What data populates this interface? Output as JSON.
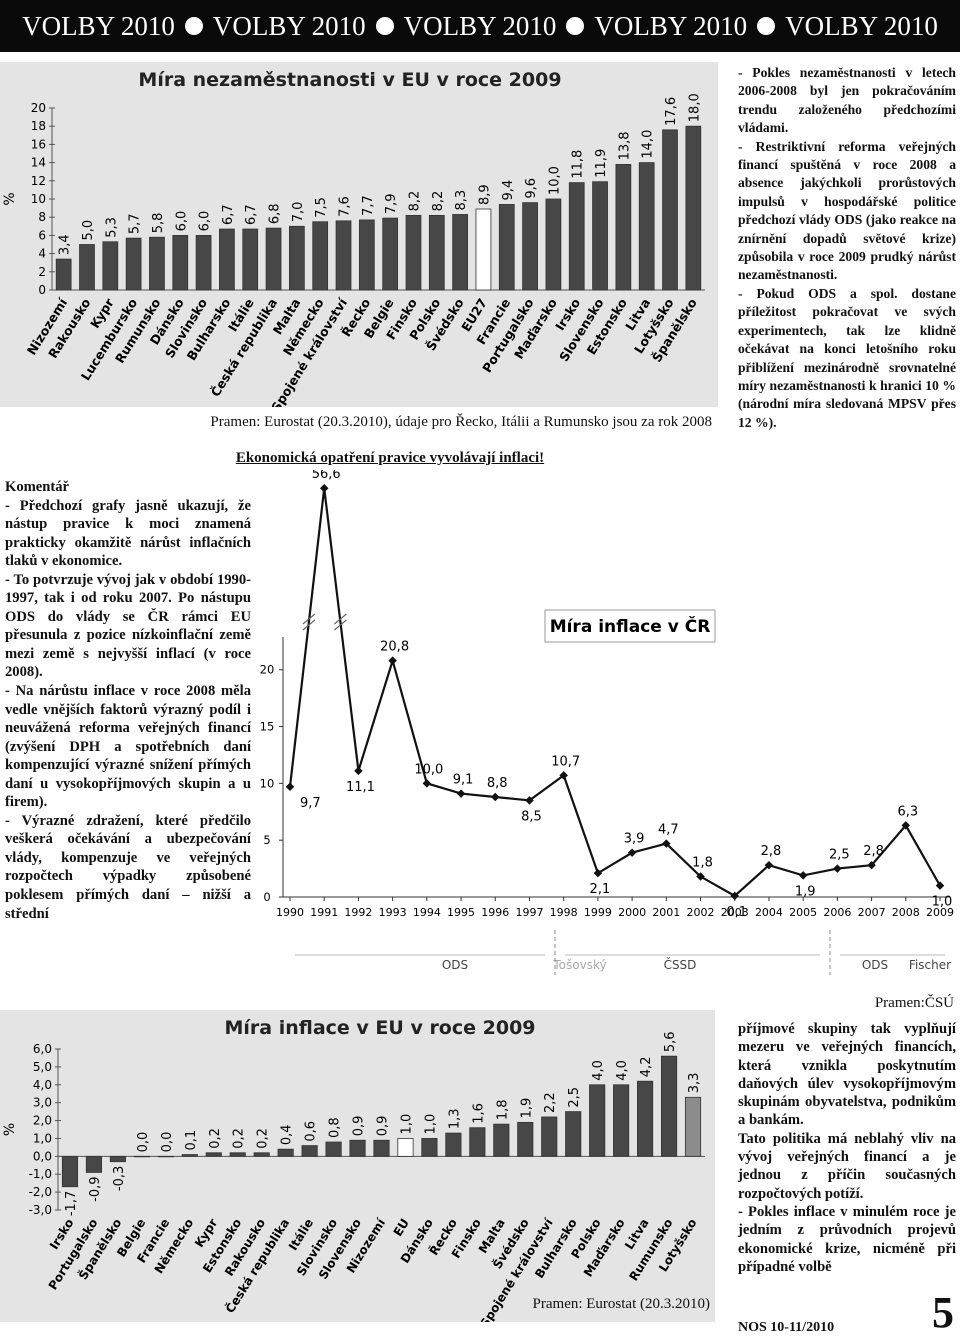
{
  "header": {
    "items": [
      "VOLBY 2010",
      "VOLBY 2010",
      "VOLBY 2010",
      "VOLBY 2010",
      "VOLBY 2010"
    ]
  },
  "chart_data": [
    {
      "type": "bar",
      "title": "Míra nezaměstnanosti v EU v roce 2009",
      "ylabel": "%",
      "categories": [
        "Nizozemí",
        "Rakousko",
        "Kypr",
        "Lucembursko",
        "Rumunsko",
        "Dánsko",
        "Slovinsko",
        "Bulharsko",
        "Itálie",
        "Česká republika",
        "Malta",
        "Německo",
        "Spojené království",
        "Řecko",
        "Belgie",
        "Finsko",
        "Polsko",
        "Švédsko",
        "EU27",
        "Francie",
        "Portugalsko",
        "Maďarsko",
        "Irsko",
        "Slovensko",
        "Estonsko",
        "Litva",
        "Lotyšsko",
        "Španělsko"
      ],
      "values": [
        3.4,
        5.0,
        5.3,
        5.7,
        5.8,
        6.0,
        6.0,
        6.7,
        6.7,
        6.8,
        7.0,
        7.5,
        7.6,
        7.7,
        7.9,
        8.2,
        8.2,
        8.3,
        8.9,
        9.4,
        9.6,
        10.0,
        11.8,
        11.9,
        13.8,
        14.0,
        17.6,
        18.0
      ],
      "value_labels": [
        "3,4",
        "5,0",
        "5,3",
        "5,7",
        "5,8",
        "6,0",
        "6,0",
        "6,7",
        "6,7",
        "6,8",
        "7,0",
        "7,5",
        "7,6",
        "7,7",
        "7,9",
        "8,2",
        "8,2",
        "8,3",
        "8,9",
        "9,4",
        "9,6",
        "10,0",
        "11,8",
        "11,9",
        "13,8",
        "14,0",
        "17,6",
        "18,0"
      ],
      "colors": [
        "#474747",
        "#474747",
        "#474747",
        "#474747",
        "#474747",
        "#474747",
        "#474747",
        "#474747",
        "#474747",
        "#474747",
        "#474747",
        "#474747",
        "#474747",
        "#474747",
        "#474747",
        "#474747",
        "#474747",
        "#474747",
        "#ffffff",
        "#474747",
        "#474747",
        "#474747",
        "#474747",
        "#474747",
        "#474747",
        "#474747",
        "#474747",
        "#474747"
      ],
      "ylim": [
        0,
        20
      ],
      "yticks": [
        0,
        2,
        4,
        6,
        8,
        10,
        12,
        14,
        16,
        18,
        20
      ],
      "source": "Pramen: Eurostat (20.3.2010), údaje pro Řecko, Itálii a Rumunsko jsou za rok 2008"
    },
    {
      "type": "line",
      "title": "Míra inflace v ČR",
      "subtitle": "Ekonomická opatření pravice vyvolávají inflaci!",
      "x": [
        1990,
        1991,
        1992,
        1993,
        1994,
        1995,
        1996,
        1997,
        1998,
        1999,
        2000,
        2001,
        2002,
        2003,
        2004,
        2005,
        2006,
        2007,
        2008,
        2009
      ],
      "values": [
        9.7,
        56.6,
        11.1,
        20.8,
        10.0,
        9.1,
        8.8,
        8.5,
        10.7,
        2.1,
        3.9,
        4.7,
        1.8,
        0.1,
        2.8,
        1.9,
        2.5,
        2.8,
        6.3,
        1.0
      ],
      "value_labels": [
        "9,7",
        "56,6",
        "11,1",
        "20,8",
        "10,0",
        "9,1",
        "8,8",
        "8,5",
        "10,7",
        "2,1",
        "3,9",
        "4,7",
        "1,8",
        "0,1",
        "2,8",
        "1,9",
        "2,5",
        "2,8",
        "6,3",
        "1,0"
      ],
      "color": "#111111",
      "xlim": [
        1990,
        2009
      ],
      "xticks": [
        1990,
        1991,
        1992,
        1993,
        1994,
        1995,
        1996,
        1997,
        1998,
        1999,
        2000,
        2001,
        2002,
        2003,
        2004,
        2005,
        2006,
        2007,
        2008,
        2009
      ],
      "ylim": [
        0,
        22
      ],
      "yticks": [
        0,
        5,
        10,
        15,
        20
      ],
      "periods": [
        "ODS",
        "Tošovský",
        "ČSSD",
        "ODS",
        "Fischer"
      ],
      "source": "Pramen:ČSÚ"
    },
    {
      "type": "bar",
      "title": "Míra inflace v EU v roce 2009",
      "ylabel": "%",
      "categories": [
        "Irsko",
        "Portugalsko",
        "Španělsko",
        "Belgie",
        "Francie",
        "Německo",
        "Kypr",
        "Estonsko",
        "Rakousko",
        "Česká republika",
        "Itálie",
        "Slovinsko",
        "Slovensko",
        "Nizozemí",
        "EU",
        "Dánsko",
        "Řecko",
        "Finsko",
        "Malta",
        "Švédsko",
        "Spojené království",
        "Bulharsko",
        "Polsko",
        "Maďarsko",
        "Litva",
        "Rumunsko",
        "Lotyšsko"
      ],
      "values": [
        -1.7,
        -0.9,
        -0.3,
        0.0,
        0.0,
        0.1,
        0.2,
        0.2,
        0.2,
        0.4,
        0.6,
        0.8,
        0.9,
        0.9,
        1.0,
        1.0,
        1.3,
        1.6,
        1.8,
        1.9,
        2.2,
        2.5,
        4.0,
        4.0,
        4.2,
        5.6,
        3.3
      ],
      "value_labels": [
        "-1,7",
        "-0,9",
        "-0,3",
        "0,0",
        "0,0",
        "0,1",
        "0,2",
        "0,2",
        "0,2",
        "0,4",
        "0,6",
        "0,8",
        "0,9",
        "0,9",
        "1,0",
        "1,0",
        "1,3",
        "1,6",
        "1,8",
        "1,9",
        "2,2",
        "2,5",
        "4,0",
        "4,0",
        "4,2",
        "5,6",
        "3,3"
      ],
      "colors": [
        "#474747",
        "#474747",
        "#474747",
        "#474747",
        "#474747",
        "#474747",
        "#474747",
        "#474747",
        "#474747",
        "#474747",
        "#474747",
        "#474747",
        "#474747",
        "#474747",
        "#ffffff",
        "#474747",
        "#474747",
        "#474747",
        "#474747",
        "#474747",
        "#474747",
        "#474747",
        "#474747",
        "#474747",
        "#474747",
        "#474747",
        "#8c8c8c"
      ],
      "ylim": [
        -3,
        6
      ],
      "yticks": [
        {
          "value": -3,
          "label": "-3,0"
        },
        {
          "value": -2,
          "label": "-2,0"
        },
        {
          "value": -1,
          "label": "-1,0"
        },
        {
          "value": 0,
          "label": "0,0"
        },
        {
          "value": 1,
          "label": "1,0"
        },
        {
          "value": 2,
          "label": "2,0"
        },
        {
          "value": 3,
          "label": "3,0"
        },
        {
          "value": 4,
          "label": "4,0"
        },
        {
          "value": 5,
          "label": "5,0"
        },
        {
          "value": 6,
          "label": "6,0"
        }
      ],
      "source": "Pramen: Eurostat (20.3.2010)"
    }
  ],
  "right_column": {
    "paragraphs": [
      "- Pokles nezaměstnanosti v letech 2006-2008 byl jen pokračováním trendu založeného předchozími vládami.",
      "- Restriktivní reforma veřejných financí spuštěná v roce 2008 a absence jakýchkoli prorůstových impulsů v hospodářské politice předchozí vlády ODS (jako reakce na znírnění dopadů světové krize) způsobila v roce 2009 prudký nárůst nezaměstnanosti.",
      "- Pokud ODS a spol. dostane příležitost pokračovat ve svých experimentech, tak lze klidně očekávat na konci letošního roku přiblížení mezinárodně srovnatelné míry nezaměstnanosti k hranici 10 % (národní míra sledovaná MPSV přes 12 %)."
    ]
  },
  "comment": {
    "title": "Komentář",
    "paragraphs": [
      "- Předchozí grafy jasně ukazují, že nástup pravice k moci znamená prakticky okamžitě nárůst inflačních tlaků v ekonomice.",
      "- To potvrzuje vývoj jak v období 1990-1997, tak i od roku 2007. Po nástupu ODS do vlády se ČR rámci EU přesunula z pozice nízkoinflační země mezi země s nejvyšší inflací (v roce 2008).",
      "- Na nárůstu inflace v roce 2008 měla vedle vnějších faktorů výrazný podíl i neuvážená reforma veřejných financí (zvýšení DPH a spotřebních daní kompenzující výrazné snížení přímých daní u vysokopříjmových skupin a u firem).",
      "- Výrazné zdražení, které předčilo veškerá očekávání a ubezpečování vlády, kompenzuje ve veřejných rozpočtech výpadky způsobené poklesem přímých daní – nižší a střední"
    ]
  },
  "bottom_right": {
    "paragraphs": [
      "příjmové skupiny tak vyplňují mezeru ve veřejných financích, která vznikla poskytnutím daňových úlev vysokopříjmovým skupinám obyvatelstva, podnikům a bankám.",
      "Tato politika má neblahý vliv na vývoj veřejných financí a je jednou z příčin současných rozpočtových potíží.",
      "- Pokles inflace v minulém roce je jedním z průvodních projevů ekonomické krize, nicméně při případné volbě"
    ]
  },
  "footer": {
    "issue": "NOS 10-11/2010",
    "page": "5"
  }
}
